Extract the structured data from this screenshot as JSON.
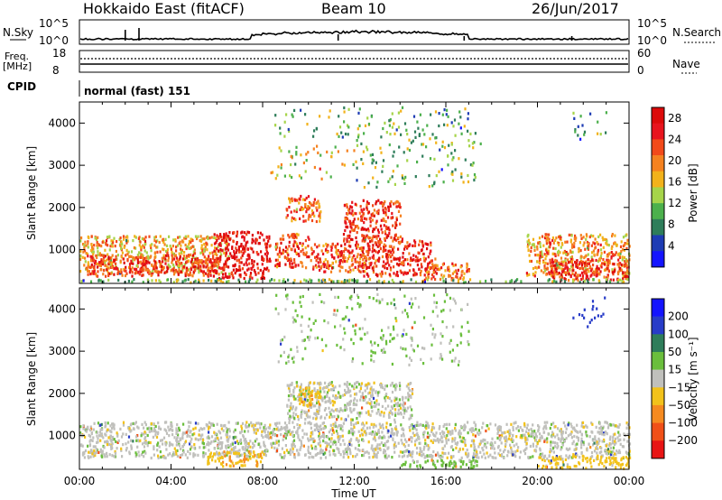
{
  "header": {
    "title": "Hokkaido East (fitACF)",
    "beam": "Beam 10",
    "date": "26/Jun/2017"
  },
  "top_panels": {
    "nsky_label": "N.Sky",
    "nsky_ticks": [
      "10^5",
      "10^0"
    ],
    "nsearch_label": "N.Search",
    "nsearch_ticks": [
      "10^5",
      "10^0"
    ],
    "freq_label": "Freq.",
    "freq_unit": "[MHz]",
    "freq_ticks": [
      "18",
      "8"
    ],
    "nave_label": "Nave",
    "nave_ticks": [
      "60",
      "0"
    ],
    "cpid_label": "CPID",
    "cpid_value": "normal (fast) 151"
  },
  "colors": {
    "power_scale": [
      "#1414ff",
      "#1e3cb4",
      "#2e7d5a",
      "#4cb04c",
      "#a6d44a",
      "#f2b21b",
      "#f58220",
      "#f24a1a",
      "#e8141e",
      "#dc0a0a"
    ],
    "velocity_scale": [
      "#1414ff",
      "#283cc8",
      "#2e7d5a",
      "#6abe3c",
      "#c0c0bc",
      "#f2c21b",
      "#f58a20",
      "#f05018",
      "#e81414"
    ]
  },
  "chart_data": [
    {
      "type": "heatmap",
      "name": "power",
      "ylabel": "Slant Range [km]",
      "yticks": [
        "1000",
        "2000",
        "3000",
        "4000"
      ],
      "ylim": [
        200,
        4500
      ],
      "xlim": [
        0,
        24
      ],
      "colorbar_label": "Power [dB]",
      "colorbar_ticks": [
        "4",
        "8",
        "12",
        "16",
        "20",
        "24",
        "28"
      ],
      "clim": [
        0,
        30
      ],
      "blobs": [
        {
          "t0": 0.0,
          "t1": 6.5,
          "r0": 450,
          "r1": 1350,
          "v": 18
        },
        {
          "t0": 0.3,
          "t1": 6.0,
          "r0": 400,
          "r1": 900,
          "v": 24
        },
        {
          "t0": 5.8,
          "t1": 8.3,
          "r0": 350,
          "r1": 1450,
          "v": 27
        },
        {
          "t0": 8.5,
          "t1": 10.0,
          "r0": 600,
          "r1": 1400,
          "v": 23
        },
        {
          "t0": 10.0,
          "t1": 12.5,
          "r0": 500,
          "r1": 1200,
          "v": 22
        },
        {
          "t0": 12.3,
          "t1": 15.5,
          "r0": 400,
          "r1": 1300,
          "v": 25
        },
        {
          "t0": 11.5,
          "t1": 14.0,
          "r0": 1200,
          "r1": 2200,
          "v": 24
        },
        {
          "t0": 9.0,
          "t1": 10.5,
          "r0": 1700,
          "r1": 2300,
          "v": 21
        },
        {
          "t0": 15.0,
          "t1": 17.0,
          "r0": 300,
          "r1": 700,
          "v": 22
        },
        {
          "t0": 19.5,
          "t1": 24.0,
          "r0": 400,
          "r1": 1400,
          "v": 19
        },
        {
          "t0": 20.5,
          "t1": 24.0,
          "r0": 300,
          "r1": 800,
          "v": 24
        },
        {
          "t0": 0.0,
          "t1": 24.0,
          "r0": 250,
          "r1": 330,
          "v": 12
        },
        {
          "t0": 8.3,
          "t1": 12.0,
          "r0": 2700,
          "r1": 3500,
          "v": 15
        },
        {
          "t0": 12.0,
          "t1": 17.5,
          "r0": 2500,
          "r1": 3800,
          "v": 12
        },
        {
          "t0": 8.5,
          "t1": 17.0,
          "r0": 3700,
          "r1": 4400,
          "v": 10
        },
        {
          "t0": 21.5,
          "t1": 23.0,
          "r0": 3600,
          "r1": 4300,
          "v": 10
        }
      ]
    },
    {
      "type": "heatmap",
      "name": "velocity",
      "ylabel": "Slant Range [km]",
      "yticks": [
        "1000",
        "2000",
        "3000",
        "4000"
      ],
      "ylim": [
        200,
        4500
      ],
      "xlim": [
        0,
        24
      ],
      "xticks": [
        "00:00",
        "04:00",
        "08:00",
        "12:00",
        "16:00",
        "20:00",
        "00:00"
      ],
      "xlabel": "Time UT",
      "colorbar_label": "Velocity [m s⁻¹]",
      "colorbar_ticks": [
        "200",
        "100",
        "50",
        "15",
        "−15",
        "−50",
        "−100",
        "−200"
      ],
      "clim": [
        -250,
        250
      ],
      "blobs": [
        {
          "t0": 0.0,
          "t1": 24.0,
          "r0": 500,
          "r1": 1350,
          "v": 0
        },
        {
          "t0": 9.0,
          "t1": 14.5,
          "r0": 1400,
          "r1": 2300,
          "v": 0
        },
        {
          "t0": 9.5,
          "t1": 10.5,
          "r0": 1700,
          "r1": 2200,
          "v": -40
        },
        {
          "t0": 5.5,
          "t1": 8.0,
          "r0": 300,
          "r1": 650,
          "v": -40
        },
        {
          "t0": 14.0,
          "t1": 17.5,
          "r0": 250,
          "r1": 450,
          "v": 30
        },
        {
          "t0": 20.0,
          "t1": 24.0,
          "r0": 250,
          "r1": 550,
          "v": -30
        },
        {
          "t0": 8.5,
          "t1": 17.0,
          "r0": 2700,
          "r1": 4400,
          "v": 20
        },
        {
          "t0": 21.5,
          "t1": 23.0,
          "r0": 3600,
          "r1": 4300,
          "v": 120
        }
      ]
    }
  ]
}
